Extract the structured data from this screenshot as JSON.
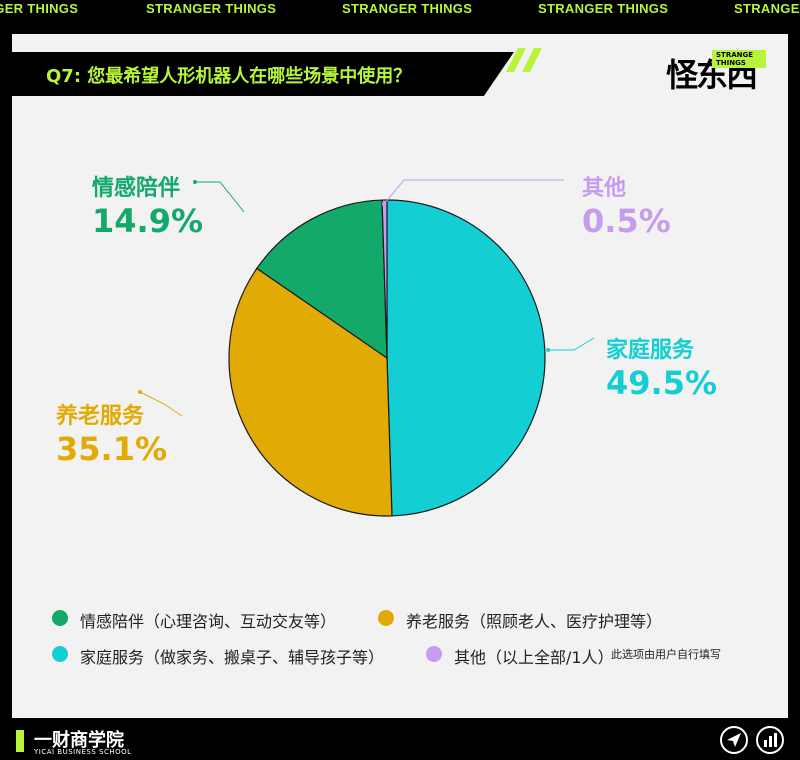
{
  "ticker": "STRANGER THINGS",
  "question": "Q7: 您最希望人形机器人在哪些场景中使用？",
  "logo": {
    "main": "怪东西",
    "badge": "STRANGE THINGS"
  },
  "colors": {
    "accent": "#b8f53a",
    "green": "#13a96b",
    "orange": "#e2aa05",
    "cyan": "#13cfd3",
    "purple": "#c59cf0"
  },
  "chart_data": {
    "type": "pie",
    "slices": [
      {
        "label": "家庭服务",
        "value": 49.5,
        "pct_text": "49.5%",
        "color": "#13cfd3"
      },
      {
        "label": "养老服务",
        "value": 35.1,
        "pct_text": "35.1%",
        "color": "#e2aa05"
      },
      {
        "label": "情感陪伴",
        "value": 14.9,
        "pct_text": "14.9%",
        "color": "#13a96b"
      },
      {
        "label": "其他",
        "value": 0.5,
        "pct_text": "0.5%",
        "color": "#c59cf0"
      }
    ],
    "legend": [
      {
        "text": "情感陪伴（心理咨询、互动交友等）",
        "color": "#13a96b"
      },
      {
        "text": "养老服务（照顾老人、医疗护理等）",
        "color": "#e2aa05"
      },
      {
        "text": "家庭服务（做家务、搬桌子、辅导孩子等）",
        "color": "#13cfd3"
      },
      {
        "text": "其他（以上全部/1人）",
        "color": "#c59cf0"
      }
    ],
    "legend_note": "此选项由用户自行填写"
  },
  "footer": {
    "name": "一财商学院",
    "sub": "YICAI BUSINESS SCHOOL",
    "icons": [
      "send-icon",
      "stats-icon"
    ]
  }
}
